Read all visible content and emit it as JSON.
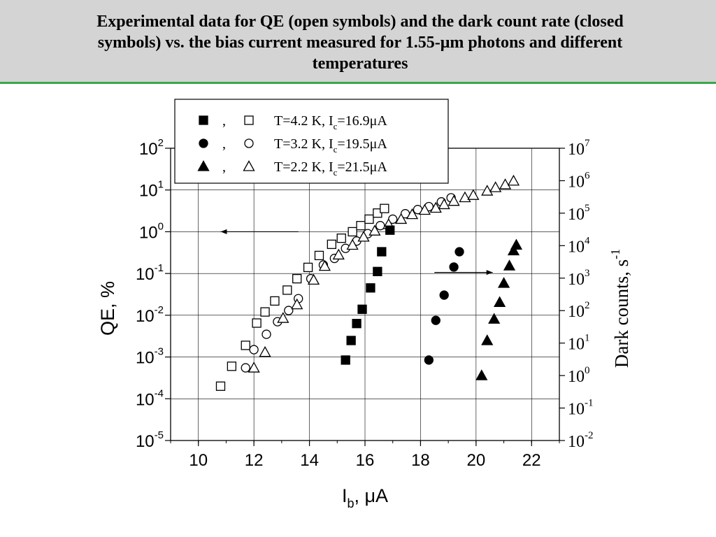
{
  "slide": {
    "title": "Experimental data for QE (open symbols) and the dark count rate (closed symbols) vs. the bias current measured for 1.55-μm photons and different temperatures"
  },
  "chart_data": {
    "type": "scatter",
    "xlabel": {
      "main": "I",
      "sub": "b",
      "rest": ", μA"
    },
    "ylabel_left": "QE, %",
    "ylabel_right": {
      "main": "Dark counts, s",
      "sup": "-1"
    },
    "xlim": [
      9,
      23
    ],
    "xticks": [
      "10",
      "12",
      "14",
      "16",
      "18",
      "20",
      "22"
    ],
    "ylim_left": [
      1e-05,
      100
    ],
    "ylim_right": [
      0.01,
      10000000
    ],
    "left_scale": "log",
    "right_scale": "log",
    "yticks_left": [
      {
        "base": "10",
        "exp": "2"
      },
      {
        "base": "10",
        "exp": "1"
      },
      {
        "base": "10",
        "exp": "0"
      },
      {
        "base": "10",
        "exp": "-1"
      },
      {
        "base": "10",
        "exp": "-2"
      },
      {
        "base": "10",
        "exp": "-3"
      },
      {
        "base": "10",
        "exp": "-4"
      },
      {
        "base": "10",
        "exp": "-5"
      }
    ],
    "yticks_right": [
      {
        "base": "10",
        "exp": "7"
      },
      {
        "base": "10",
        "exp": "6"
      },
      {
        "base": "10",
        "exp": "5"
      },
      {
        "base": "10",
        "exp": "4"
      },
      {
        "base": "10",
        "exp": "3"
      },
      {
        "base": "10",
        "exp": "2"
      },
      {
        "base": "10",
        "exp": "1"
      },
      {
        "base": "10",
        "exp": "0"
      },
      {
        "base": "10",
        "exp": "-1"
      },
      {
        "base": "10",
        "exp": "-2"
      }
    ],
    "grid": true,
    "legend_position": "top",
    "legend": [
      {
        "marker": "square",
        "sep": ",",
        "text": {
          "a": "T=4.2 K, I",
          "sub": "c",
          "b": "=16.9μA"
        }
      },
      {
        "marker": "circle",
        "sep": ",",
        "text": {
          "a": "T=3.2 K, I",
          "sub": "c",
          "b": "=19.5μA"
        }
      },
      {
        "marker": "triangle",
        "sep": ",",
        "text": {
          "a": "T=2.2 K, I",
          "sub": "c",
          "b": "=21.5μA"
        }
      }
    ],
    "arrows": [
      {
        "axis": "left",
        "from": [
          13.6,
          1.0
        ],
        "to": [
          10.8,
          1.0
        ]
      },
      {
        "axis": "right",
        "from": [
          18.5,
          1500
        ],
        "to": [
          20.6,
          1500
        ]
      }
    ],
    "series": [
      {
        "marker": "square",
        "fill": "open",
        "axis": "left",
        "name": "T=4.2 K, Ic=16.9μA",
        "points": [
          [
            10.8,
            0.0002
          ],
          [
            11.2,
            0.0006
          ],
          [
            11.7,
            0.0019
          ],
          [
            12.1,
            0.0065
          ],
          [
            12.4,
            0.012
          ],
          [
            12.75,
            0.022
          ],
          [
            13.2,
            0.04
          ],
          [
            13.55,
            0.075
          ],
          [
            13.95,
            0.14
          ],
          [
            14.35,
            0.27
          ],
          [
            14.8,
            0.5
          ],
          [
            15.15,
            0.7
          ],
          [
            15.55,
            1.0
          ],
          [
            15.85,
            1.4
          ],
          [
            16.15,
            2.0
          ],
          [
            16.45,
            2.8
          ],
          [
            16.7,
            3.6
          ]
        ]
      },
      {
        "marker": "circle",
        "fill": "open",
        "axis": "left",
        "name": "T=3.2 K, Ic=19.5μA",
        "points": [
          [
            11.7,
            0.00055
          ],
          [
            12.0,
            0.0015
          ],
          [
            12.45,
            0.0035
          ],
          [
            12.85,
            0.007
          ],
          [
            13.25,
            0.013
          ],
          [
            13.6,
            0.025
          ],
          [
            14.05,
            0.075
          ],
          [
            14.5,
            0.16
          ],
          [
            14.9,
            0.23
          ],
          [
            15.3,
            0.4
          ],
          [
            15.7,
            0.6
          ],
          [
            16.1,
            0.9
          ],
          [
            16.55,
            1.4
          ],
          [
            17.0,
            2.0
          ],
          [
            17.45,
            2.7
          ],
          [
            17.9,
            3.4
          ],
          [
            18.3,
            4.0
          ],
          [
            18.75,
            5.2
          ],
          [
            19.1,
            6.5
          ]
        ]
      },
      {
        "marker": "triangle",
        "fill": "open",
        "axis": "left",
        "name": "T=2.2 K, Ic=21.5μA",
        "points": [
          [
            12.0,
            0.00055
          ],
          [
            12.4,
            0.0013
          ],
          [
            13.05,
            0.0085
          ],
          [
            13.55,
            0.018
          ],
          [
            14.15,
            0.07
          ],
          [
            14.55,
            0.15
          ],
          [
            15.05,
            0.28
          ],
          [
            15.55,
            0.48
          ],
          [
            15.95,
            0.75
          ],
          [
            16.35,
            1.05
          ],
          [
            16.85,
            1.5
          ],
          [
            17.3,
            2.0
          ],
          [
            17.7,
            2.6
          ],
          [
            18.15,
            3.3
          ],
          [
            18.55,
            3.7
          ],
          [
            18.85,
            4.5
          ],
          [
            19.2,
            5.4
          ],
          [
            19.6,
            6.6
          ],
          [
            19.9,
            7.5
          ],
          [
            20.4,
            9.5
          ],
          [
            20.7,
            11.5
          ],
          [
            21.05,
            13.5
          ],
          [
            21.35,
            16.5
          ]
        ]
      },
      {
        "marker": "square",
        "fill": "filled",
        "axis": "right",
        "name": "T=4.2 K, Ic=16.9μA",
        "points": [
          [
            15.3,
            3.0
          ],
          [
            15.5,
            12
          ],
          [
            15.7,
            40
          ],
          [
            15.9,
            110
          ],
          [
            16.2,
            500
          ],
          [
            16.45,
            1600
          ],
          [
            16.6,
            6500
          ],
          [
            16.9,
            30000
          ]
        ]
      },
      {
        "marker": "circle",
        "fill": "filled",
        "axis": "right",
        "name": "T=3.2 K, Ic=19.5μA",
        "points": [
          [
            18.3,
            3.0
          ],
          [
            18.55,
            50
          ],
          [
            18.85,
            300
          ],
          [
            19.2,
            2200
          ],
          [
            19.4,
            6500
          ]
        ]
      },
      {
        "marker": "triangle",
        "fill": "filled",
        "axis": "right",
        "name": "T=2.2 K, Ic=21.5μA",
        "points": [
          [
            20.2,
            1.0
          ],
          [
            20.4,
            12
          ],
          [
            20.65,
            55
          ],
          [
            20.85,
            180
          ],
          [
            21.0,
            700
          ],
          [
            21.2,
            2400
          ],
          [
            21.35,
            7000
          ],
          [
            21.45,
            10500
          ]
        ]
      }
    ]
  }
}
